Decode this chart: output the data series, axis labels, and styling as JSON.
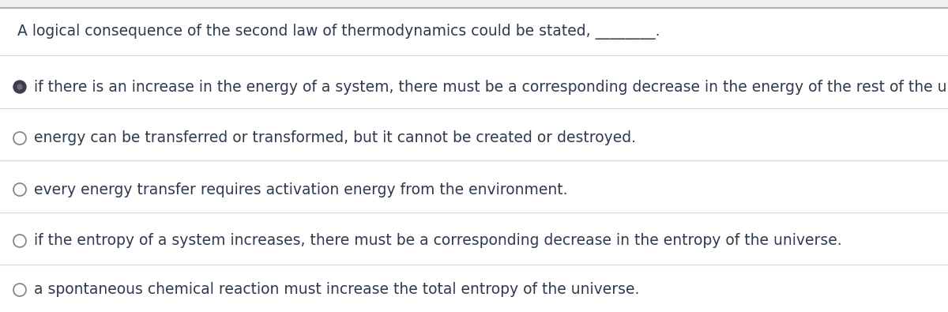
{
  "background_color": "#ffffff",
  "outer_bg_color": "#f0f0f0",
  "border_color": "#b0b0b0",
  "divider_color": "#d8d8d8",
  "question_text": "A logical consequence of the second law of thermodynamics could be stated, ________.",
  "question_fontsize": 13.5,
  "question_color": "#2e3a4e",
  "options": [
    {
      "text": "if there is an increase in the energy of a system, there must be a corresponding decrease in the energy of the rest of the universe.",
      "selected": true
    },
    {
      "text": "energy can be transferred or transformed, but it cannot be created or destroyed.",
      "selected": false
    },
    {
      "text": "every energy transfer requires activation energy from the environment.",
      "selected": false
    },
    {
      "text": "if the entropy of a system increases, there must be a corresponding decrease in the entropy of the universe.",
      "selected": false
    },
    {
      "text": "a spontaneous chemical reaction must increase the total entropy of the universe.",
      "selected": false
    }
  ],
  "option_fontsize": 13.5,
  "option_text_color": "#2e3a4e",
  "radio_selected_outer": "#3d3d50",
  "radio_selected_inner": "#6b6b80",
  "radio_unselected_edge": "#888888",
  "radio_unselected_face": "#ffffff"
}
